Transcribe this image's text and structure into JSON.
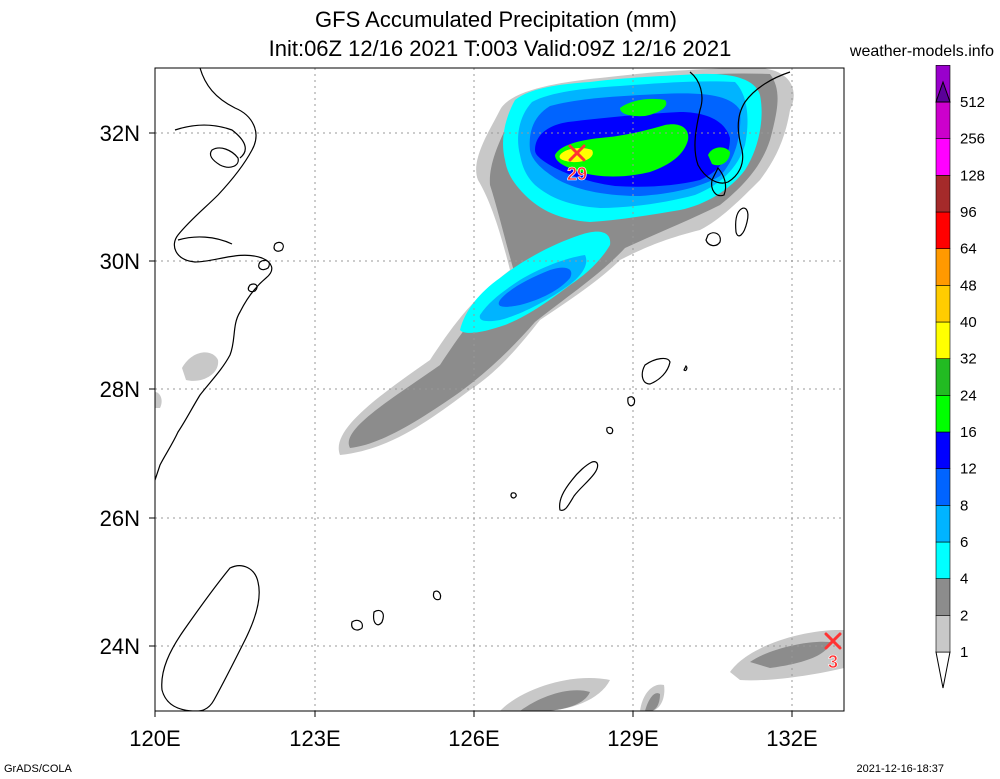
{
  "title": {
    "line1": "GFS Accumulated Precipitation (mm)",
    "line2": "Init:06Z 12/16 2021 T:003 Valid:09Z 12/16 2021"
  },
  "site": "weather-models.info",
  "credit": "GrADS/COLA",
  "timestamp": "2021-12-16-18:37",
  "map": {
    "lon_range": [
      120,
      133
    ],
    "lat_range": [
      23,
      33
    ],
    "lon_ticks": [
      "120E",
      "123E",
      "126E",
      "129E",
      "132E"
    ],
    "lat_ticks": [
      "24N",
      "26N",
      "28N",
      "30N",
      "32N"
    ],
    "markers": [
      {
        "label": "29",
        "lon": 128.0,
        "lat": 31.7
      },
      {
        "label": "3",
        "lon": 132.8,
        "lat": 24.1
      }
    ]
  },
  "legend": {
    "levels": [
      "1",
      "2",
      "4",
      "6",
      "8",
      "12",
      "16",
      "24",
      "32",
      "40",
      "48",
      "64",
      "96",
      "128",
      "256",
      "512"
    ],
    "colors": [
      "#c8c8c8",
      "#8c8c8c",
      "#00ffff",
      "#00b4ff",
      "#0064ff",
      "#0000ff",
      "#00ff00",
      "#22bb22",
      "#ffff00",
      "#ffcc00",
      "#ff9900",
      "#ff0000",
      "#a52a2a",
      "#ff00ff",
      "#cc00cc",
      "#9900cc",
      "#5a0099"
    ]
  }
}
